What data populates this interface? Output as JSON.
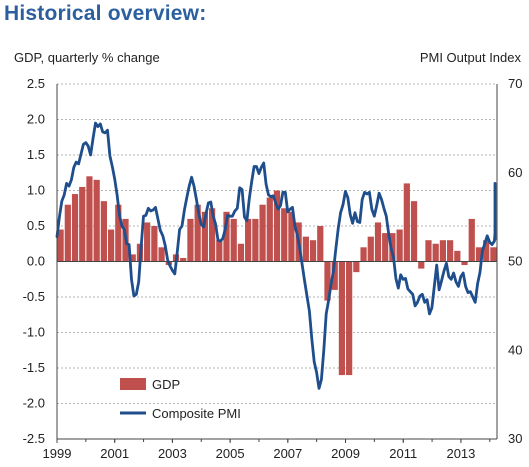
{
  "title": "Historical overview:",
  "chart_data": {
    "type": "bar+line",
    "ylabel_left": "GDP, quarterly % change",
    "ylabel_right": "PMI Output  Index",
    "ylim_left": [
      -2.5,
      2.5
    ],
    "ylim_right": [
      30,
      70
    ],
    "yticks_left": [
      "2.5",
      "2.0",
      "1.5",
      "1.0",
      "0.5",
      "0.0",
      "-0.5",
      "-1.0",
      "-1.5",
      "-2.0",
      "-2.5"
    ],
    "yticks_right": [
      "70",
      "60",
      "50",
      "40",
      "30"
    ],
    "xrange": [
      1999,
      2014.25
    ],
    "xticks": [
      "1999",
      "2001",
      "2003",
      "2005",
      "2007",
      "2009",
      "2011",
      "2013"
    ],
    "grid": "horizontal dashed",
    "legend_position": "bottom-left",
    "colors": {
      "gdp": "#c0504d",
      "pmi": "#1f4e8c",
      "title": "#2b5f9e"
    },
    "series": [
      {
        "name": "GDP",
        "kind": "bar",
        "start": 1999.0,
        "step": 0.25,
        "values": [
          0.45,
          0.8,
          0.95,
          1.05,
          1.2,
          1.15,
          0.85,
          0.45,
          0.8,
          0.6,
          0.1,
          0.25,
          0.55,
          0.5,
          0.2,
          -0.05,
          0.1,
          0.05,
          0.6,
          0.8,
          0.7,
          0.75,
          0.3,
          0.7,
          0.6,
          0.25,
          0.6,
          0.6,
          0.8,
          0.9,
          1.0,
          0.75,
          0.7,
          0.55,
          0.35,
          0.3,
          0.5,
          -0.55,
          -0.4,
          -1.6,
          -1.6,
          -0.15,
          0.2,
          0.35,
          0.55,
          0.4,
          0.4,
          0.45,
          1.1,
          0.85,
          -0.1,
          0.3,
          0.25,
          0.3,
          0.3,
          0.15,
          -0.05,
          0.6,
          0.2,
          0.3,
          0.2
        ]
      },
      {
        "name": "Composite PMI",
        "kind": "line",
        "start": 1999.0,
        "step": 0.0833,
        "values": [
          52.8,
          55.0,
          56.8,
          57.5,
          58.8,
          58.5,
          59.2,
          60.6,
          61.2,
          61.0,
          62.1,
          63.2,
          63.4,
          63.0,
          62.0,
          63.9,
          65.6,
          65.2,
          65.5,
          64.6,
          64.5,
          64.8,
          61.9,
          60.7,
          59.3,
          57.5,
          55.2,
          54.0,
          53.6,
          52.0,
          51.9,
          48.0,
          46.1,
          46.3,
          47.7,
          51.6,
          55.1,
          55.2,
          56.0,
          55.7,
          55.8,
          56.1,
          54.8,
          53.5,
          52.9,
          51.8,
          50.2,
          49.5,
          49.0,
          48.6,
          51.0,
          53.6,
          54.0,
          55.8,
          57.2,
          58.5,
          59.5,
          58.5,
          57.0,
          55.4,
          54.2,
          53.9,
          55.4,
          56.6,
          56.7,
          55.1,
          54.2,
          52.4,
          52.3,
          52.6,
          53.6,
          55.2,
          55.1,
          55.1,
          55.7,
          56.0,
          58.3,
          58.1,
          55.0,
          54.6,
          57.1,
          59.0,
          60.7,
          60.7,
          59.9,
          60.6,
          61.1,
          58.7,
          57.5,
          57.3,
          57.4,
          56.6,
          55.9,
          56.3,
          57.8,
          57.8,
          55.6,
          55.9,
          56.1,
          54.0,
          53.0,
          51.5,
          49.7,
          47.8,
          46.1,
          44.4,
          41.3,
          38.7,
          37.5,
          35.7,
          36.7,
          40.0,
          44.1,
          45.6,
          47.4,
          48.9,
          51.4,
          53.7,
          55.5,
          56.4,
          57.9,
          57.2,
          55.3,
          54.3,
          55.5,
          54.5,
          54.4,
          57.0,
          57.8,
          57.6,
          57.8,
          55.9,
          55.1,
          56.3,
          57.7,
          57.0,
          56.0,
          55.1,
          53.1,
          51.5,
          50.5,
          48.1,
          47.0,
          48.5,
          48.0,
          48.1,
          46.9,
          46.6,
          46.3,
          45.0,
          45.4,
          46.1,
          46.3,
          45.4,
          45.7,
          44.1,
          44.8,
          47.2,
          49.6,
          46.8,
          47.8,
          48.9,
          49.8,
          48.3,
          48.0,
          48.7,
          47.7,
          47.2,
          48.3,
          48.7,
          47.2,
          46.5,
          46.6,
          46.0,
          45.4,
          47.5,
          48.8,
          51.2,
          52.0,
          52.9,
          52.2,
          51.9,
          52.3,
          53.2,
          52.8,
          52.7,
          52.5,
          54.3,
          54.8,
          55.7,
          56.3,
          58.1,
          57.3,
          58.8
        ]
      }
    ]
  }
}
